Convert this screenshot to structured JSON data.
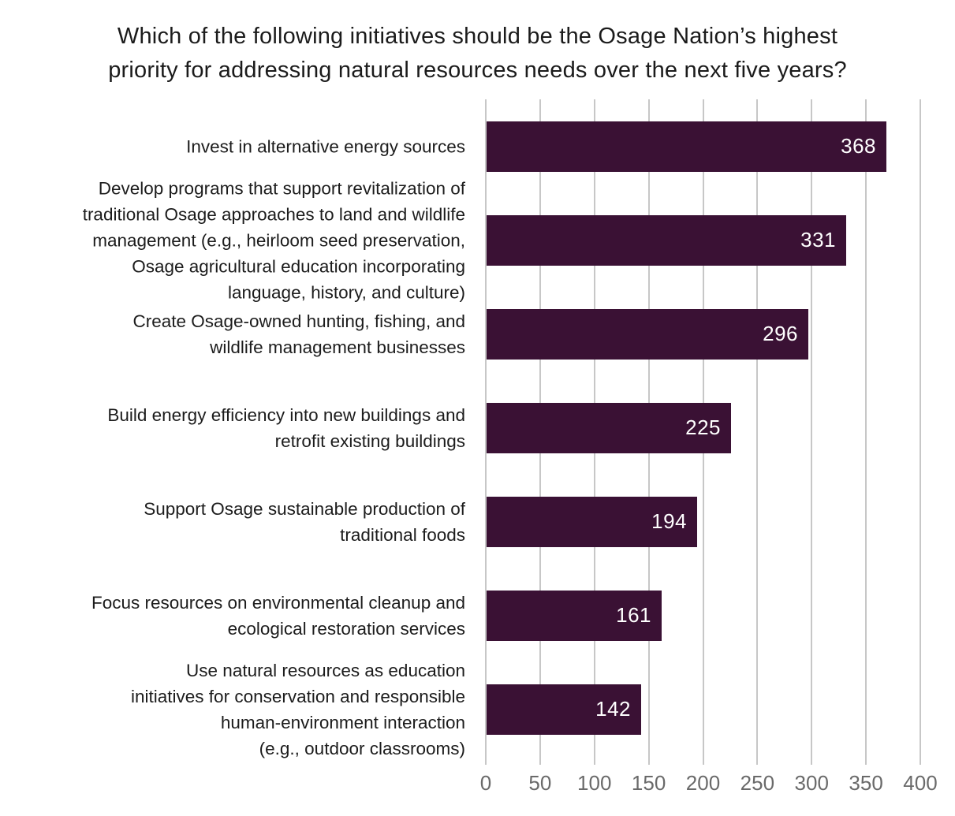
{
  "chart_data": {
    "type": "bar",
    "orientation": "horizontal",
    "title": "Which of the following initiatives should be the Osage Nation’s highest priority for addressing natural resources needs over the next five years?",
    "title_lines": [
      "Which of the following initiatives should be the Osage Nation’s highest",
      "priority for addressing natural resources needs over the next five years?"
    ],
    "categories": [
      "Invest in alternative energy sources",
      "Develop programs that support revitalization of traditional Osage approaches to land and wildlife management (e.g., heirloom seed preservation, Osage agricultural education incorporating language, history, and culture)",
      "Create Osage-owned hunting, fishing, and wildlife management businesses",
      "Build energy efficiency into new buildings and retrofit existing buildings",
      "Support Osage sustainable production of traditional foods",
      "Focus resources on environmental cleanup and ecological restoration services",
      "Use natural resources as education initiatives for conservation and responsible human-environment interaction (e.g., outdoor classrooms)"
    ],
    "category_lines": [
      [
        "Invest in alternative energy sources"
      ],
      [
        "Develop programs that support revitalization of",
        "traditional Osage approaches to land and wildlife",
        "management (e.g., heirloom seed preservation,",
        "Osage agricultural education incorporating",
        "language, history, and culture)"
      ],
      [
        "Create Osage-owned hunting, fishing, and",
        "wildlife management businesses"
      ],
      [
        "Build energy efficiency into new buildings and",
        "retrofit existing buildings"
      ],
      [
        "Support Osage sustainable production of",
        "traditional foods"
      ],
      [
        "Focus resources on environmental cleanup and",
        "ecological restoration services"
      ],
      [
        "Use natural resources as education",
        "initiatives for conservation and responsible",
        "human-environment interaction",
        "(e.g., outdoor classrooms)"
      ]
    ],
    "values": [
      368,
      331,
      296,
      225,
      194,
      161,
      142
    ],
    "x_ticks": [
      0,
      50,
      100,
      150,
      200,
      250,
      300,
      350,
      400
    ],
    "xlim": [
      0,
      400
    ],
    "xlabel": "",
    "ylabel": "",
    "grid": "vertical",
    "legend": "none",
    "colors": {
      "bar": "#3a1134",
      "value_label": "#ffffff",
      "gridline": "#c7c7c7",
      "tick_label": "#6a6a6a",
      "title_text": "#1b1b1b",
      "category_text": "#1c1c1c",
      "background": "#ffffff"
    }
  }
}
